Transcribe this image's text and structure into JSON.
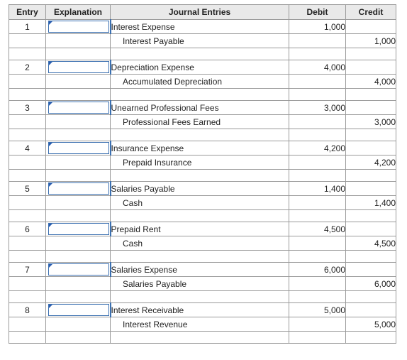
{
  "headers": {
    "entry": "Entry",
    "explanation": "Explanation",
    "journal_entries": "Journal Entries",
    "debit": "Debit",
    "credit": "Credit"
  },
  "entries": [
    {
      "no": "1",
      "explanation": "",
      "debit_account": "Interest Expense",
      "debit_amount": "1,000",
      "credit_account": "Interest Payable",
      "credit_amount": "1,000"
    },
    {
      "no": "2",
      "explanation": "",
      "debit_account": "Depreciation Expense",
      "debit_amount": "4,000",
      "credit_account": "Accumulated Depreciation",
      "credit_amount": "4,000"
    },
    {
      "no": "3",
      "explanation": "",
      "debit_account": "Unearned Professional Fees",
      "debit_amount": "3,000",
      "credit_account": "Professional Fees Earned",
      "credit_amount": "3,000"
    },
    {
      "no": "4",
      "explanation": "",
      "debit_account": "Insurance Expense",
      "debit_amount": "4,200",
      "credit_account": "Prepaid Insurance",
      "credit_amount": "4,200"
    },
    {
      "no": "5",
      "explanation": "",
      "debit_account": "Salaries Payable",
      "debit_amount": "1,400",
      "credit_account": "Cash",
      "credit_amount": "1,400"
    },
    {
      "no": "6",
      "explanation": "",
      "debit_account": "Prepaid Rent",
      "debit_amount": "4,500",
      "credit_account": "Cash",
      "credit_amount": "4,500"
    },
    {
      "no": "7",
      "explanation": "",
      "debit_account": "Salaries Expense",
      "debit_amount": "6,000",
      "credit_account": "Salaries Payable",
      "credit_amount": "6,000"
    },
    {
      "no": "8",
      "explanation": "",
      "debit_account": "Interest Receivable",
      "debit_amount": "5,000",
      "credit_account": "Interest Revenue",
      "credit_amount": "5,000"
    }
  ]
}
